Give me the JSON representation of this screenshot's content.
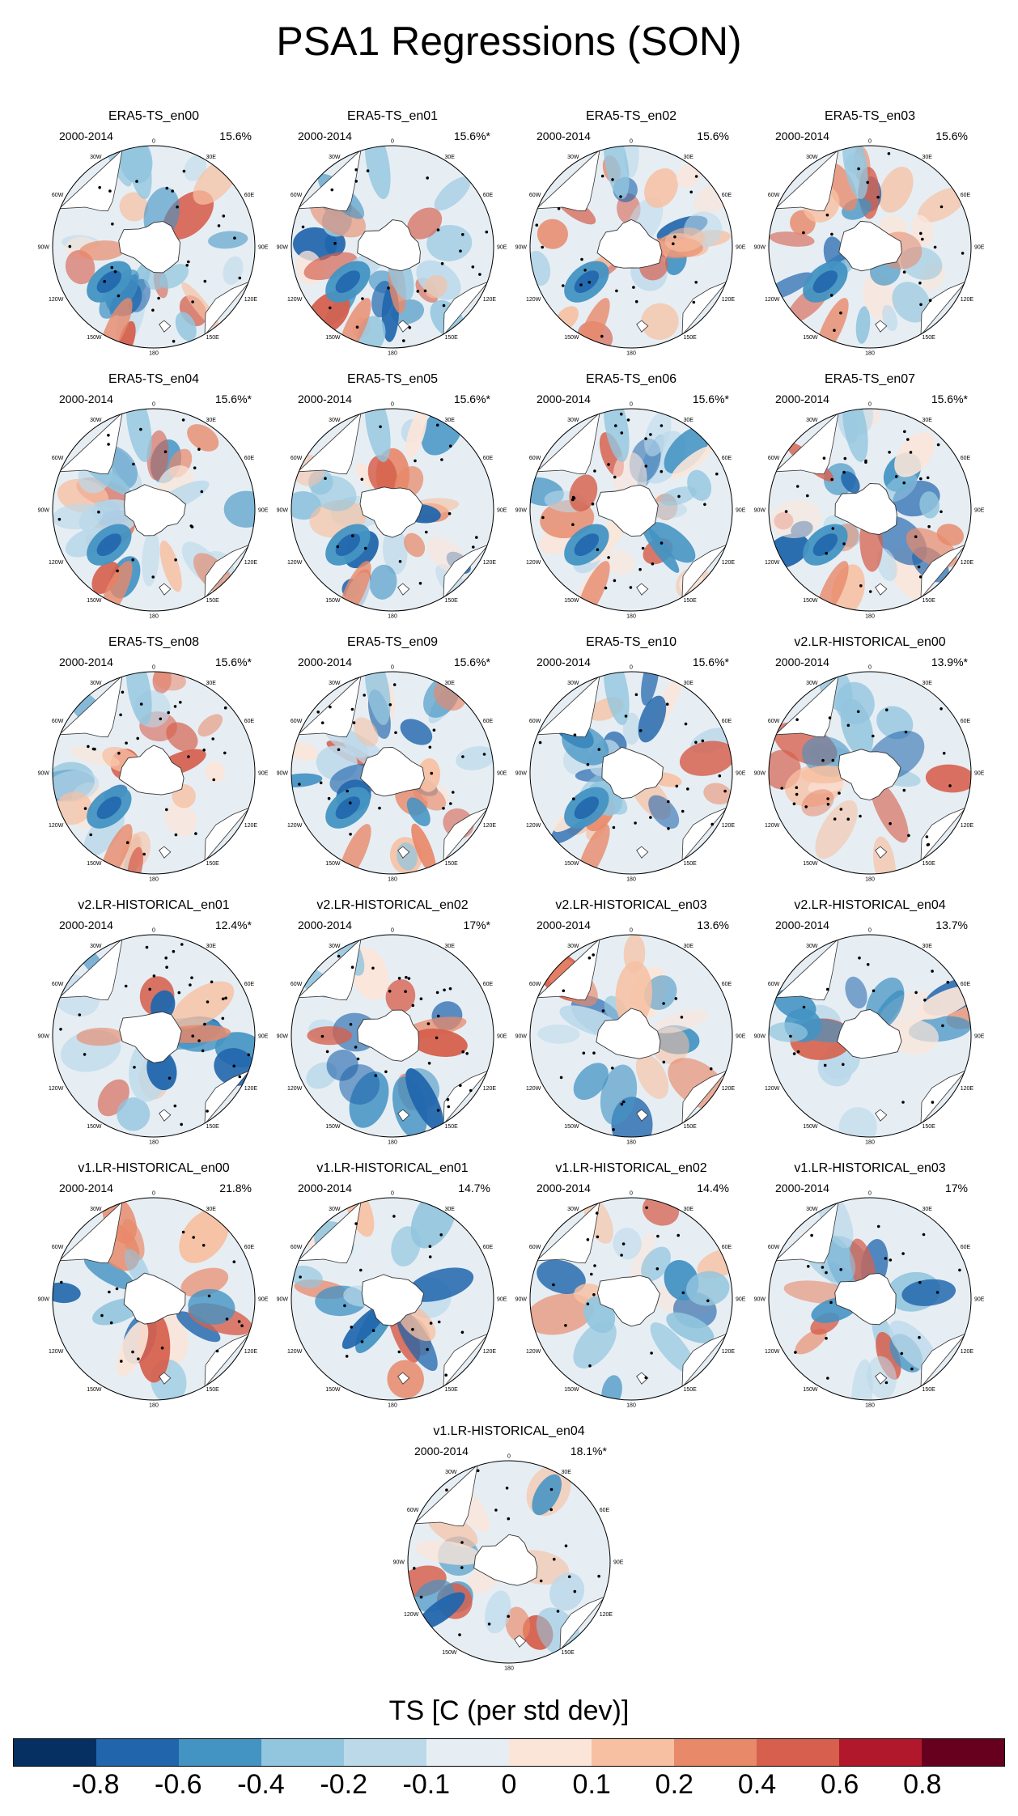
{
  "figure": {
    "title": "PSA1 Regressions (SON)",
    "lon_labels": [
      "0",
      "30E",
      "60E",
      "90E",
      "120E",
      "150E",
      "180",
      "150W",
      "120W",
      "90W",
      "60W",
      "30W"
    ],
    "panels": [
      {
        "title": "ERA5-TS_en00",
        "period": "2000-2014",
        "stat": "15.6%",
        "style": "obs"
      },
      {
        "title": "ERA5-TS_en01",
        "period": "2000-2014",
        "stat": "15.6%*",
        "style": "obs"
      },
      {
        "title": "ERA5-TS_en02",
        "period": "2000-2014",
        "stat": "15.6%",
        "style": "obs"
      },
      {
        "title": "ERA5-TS_en03",
        "period": "2000-2014",
        "stat": "15.6%",
        "style": "obs"
      },
      {
        "title": "ERA5-TS_en04",
        "period": "2000-2014",
        "stat": "15.6%*",
        "style": "obs"
      },
      {
        "title": "ERA5-TS_en05",
        "period": "2000-2014",
        "stat": "15.6%*",
        "style": "obs"
      },
      {
        "title": "ERA5-TS_en06",
        "period": "2000-2014",
        "stat": "15.6%*",
        "style": "obs"
      },
      {
        "title": "ERA5-TS_en07",
        "period": "2000-2014",
        "stat": "15.6%*",
        "style": "obs"
      },
      {
        "title": "ERA5-TS_en08",
        "period": "2000-2014",
        "stat": "15.6%*",
        "style": "obs"
      },
      {
        "title": "ERA5-TS_en09",
        "period": "2000-2014",
        "stat": "15.6%*",
        "style": "obs"
      },
      {
        "title": "ERA5-TS_en10",
        "period": "2000-2014",
        "stat": "15.6%*",
        "style": "obs"
      },
      {
        "title": "v2.LR-HISTORICAL_en00",
        "period": "2000-2014",
        "stat": "13.9%*",
        "style": "model"
      },
      {
        "title": "v2.LR-HISTORICAL_en01",
        "period": "2000-2014",
        "stat": "12.4%*",
        "style": "model"
      },
      {
        "title": "v2.LR-HISTORICAL_en02",
        "period": "2000-2014",
        "stat": "17%*",
        "style": "model"
      },
      {
        "title": "v2.LR-HISTORICAL_en03",
        "period": "2000-2014",
        "stat": "13.6%",
        "style": "model"
      },
      {
        "title": "v2.LR-HISTORICAL_en04",
        "period": "2000-2014",
        "stat": "13.7%",
        "style": "model"
      },
      {
        "title": "v1.LR-HISTORICAL_en00",
        "period": "2000-2014",
        "stat": "21.8%",
        "style": "model"
      },
      {
        "title": "v1.LR-HISTORICAL_en01",
        "period": "2000-2014",
        "stat": "14.7%",
        "style": "model"
      },
      {
        "title": "v1.LR-HISTORICAL_en02",
        "period": "2000-2014",
        "stat": "14.4%",
        "style": "model"
      },
      {
        "title": "v1.LR-HISTORICAL_en03",
        "period": "2000-2014",
        "stat": "17%",
        "style": "model"
      },
      {
        "title": "v1.LR-HISTORICAL_en04",
        "period": "2000-2014",
        "stat": "18.1%*",
        "style": "model"
      }
    ]
  },
  "colorbar": {
    "title": "TS [C (per std dev)]",
    "labels": [
      "-0.8",
      "-0.6",
      "-0.4",
      "-0.2",
      "-0.1",
      "0",
      "0.1",
      "0.2",
      "0.4",
      "0.6",
      "0.8"
    ],
    "colors": [
      "#053061",
      "#2166ac",
      "#4393c3",
      "#92c5de",
      "#bcd9ea",
      "#e6eef4",
      "#fbe5d9",
      "#f7c0a2",
      "#e8896a",
      "#d6604d",
      "#b2182b",
      "#67001f"
    ]
  },
  "palette": {
    "land": "#ffffff",
    "coast": "#333333",
    "stipple": "#000000"
  }
}
